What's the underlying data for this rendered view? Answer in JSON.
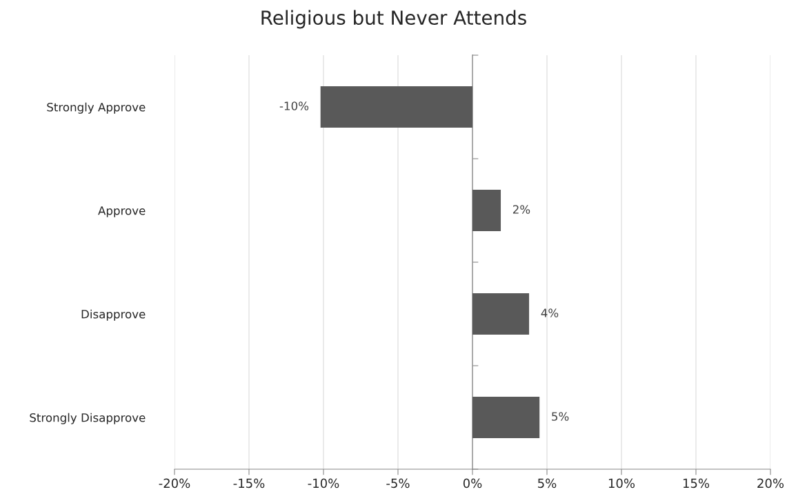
{
  "chart_data": {
    "type": "bar",
    "orientation": "horizontal",
    "title": "Religious but Never Attends",
    "categories": [
      "Strongly Approve",
      "Approve",
      "Disapprove",
      "Strongly Disapprove"
    ],
    "values": [
      -10.2,
      1.9,
      3.8,
      4.5
    ],
    "value_labels": [
      "-10%",
      "2%",
      "4%",
      "5%"
    ],
    "color": "#595959",
    "xlim": [
      -20,
      20
    ],
    "xticks": [
      {
        "value": -20,
        "label": "-20%"
      },
      {
        "value": -15,
        "label": "-15%"
      },
      {
        "value": -10,
        "label": "-10%"
      },
      {
        "value": -5,
        "label": "-5%"
      },
      {
        "value": 0,
        "label": "0%"
      },
      {
        "value": 5,
        "label": "5%"
      },
      {
        "value": 10,
        "label": "10%"
      },
      {
        "value": 15,
        "label": "15%"
      },
      {
        "value": 20,
        "label": "20%"
      }
    ],
    "grid": "x",
    "legend": false
  }
}
